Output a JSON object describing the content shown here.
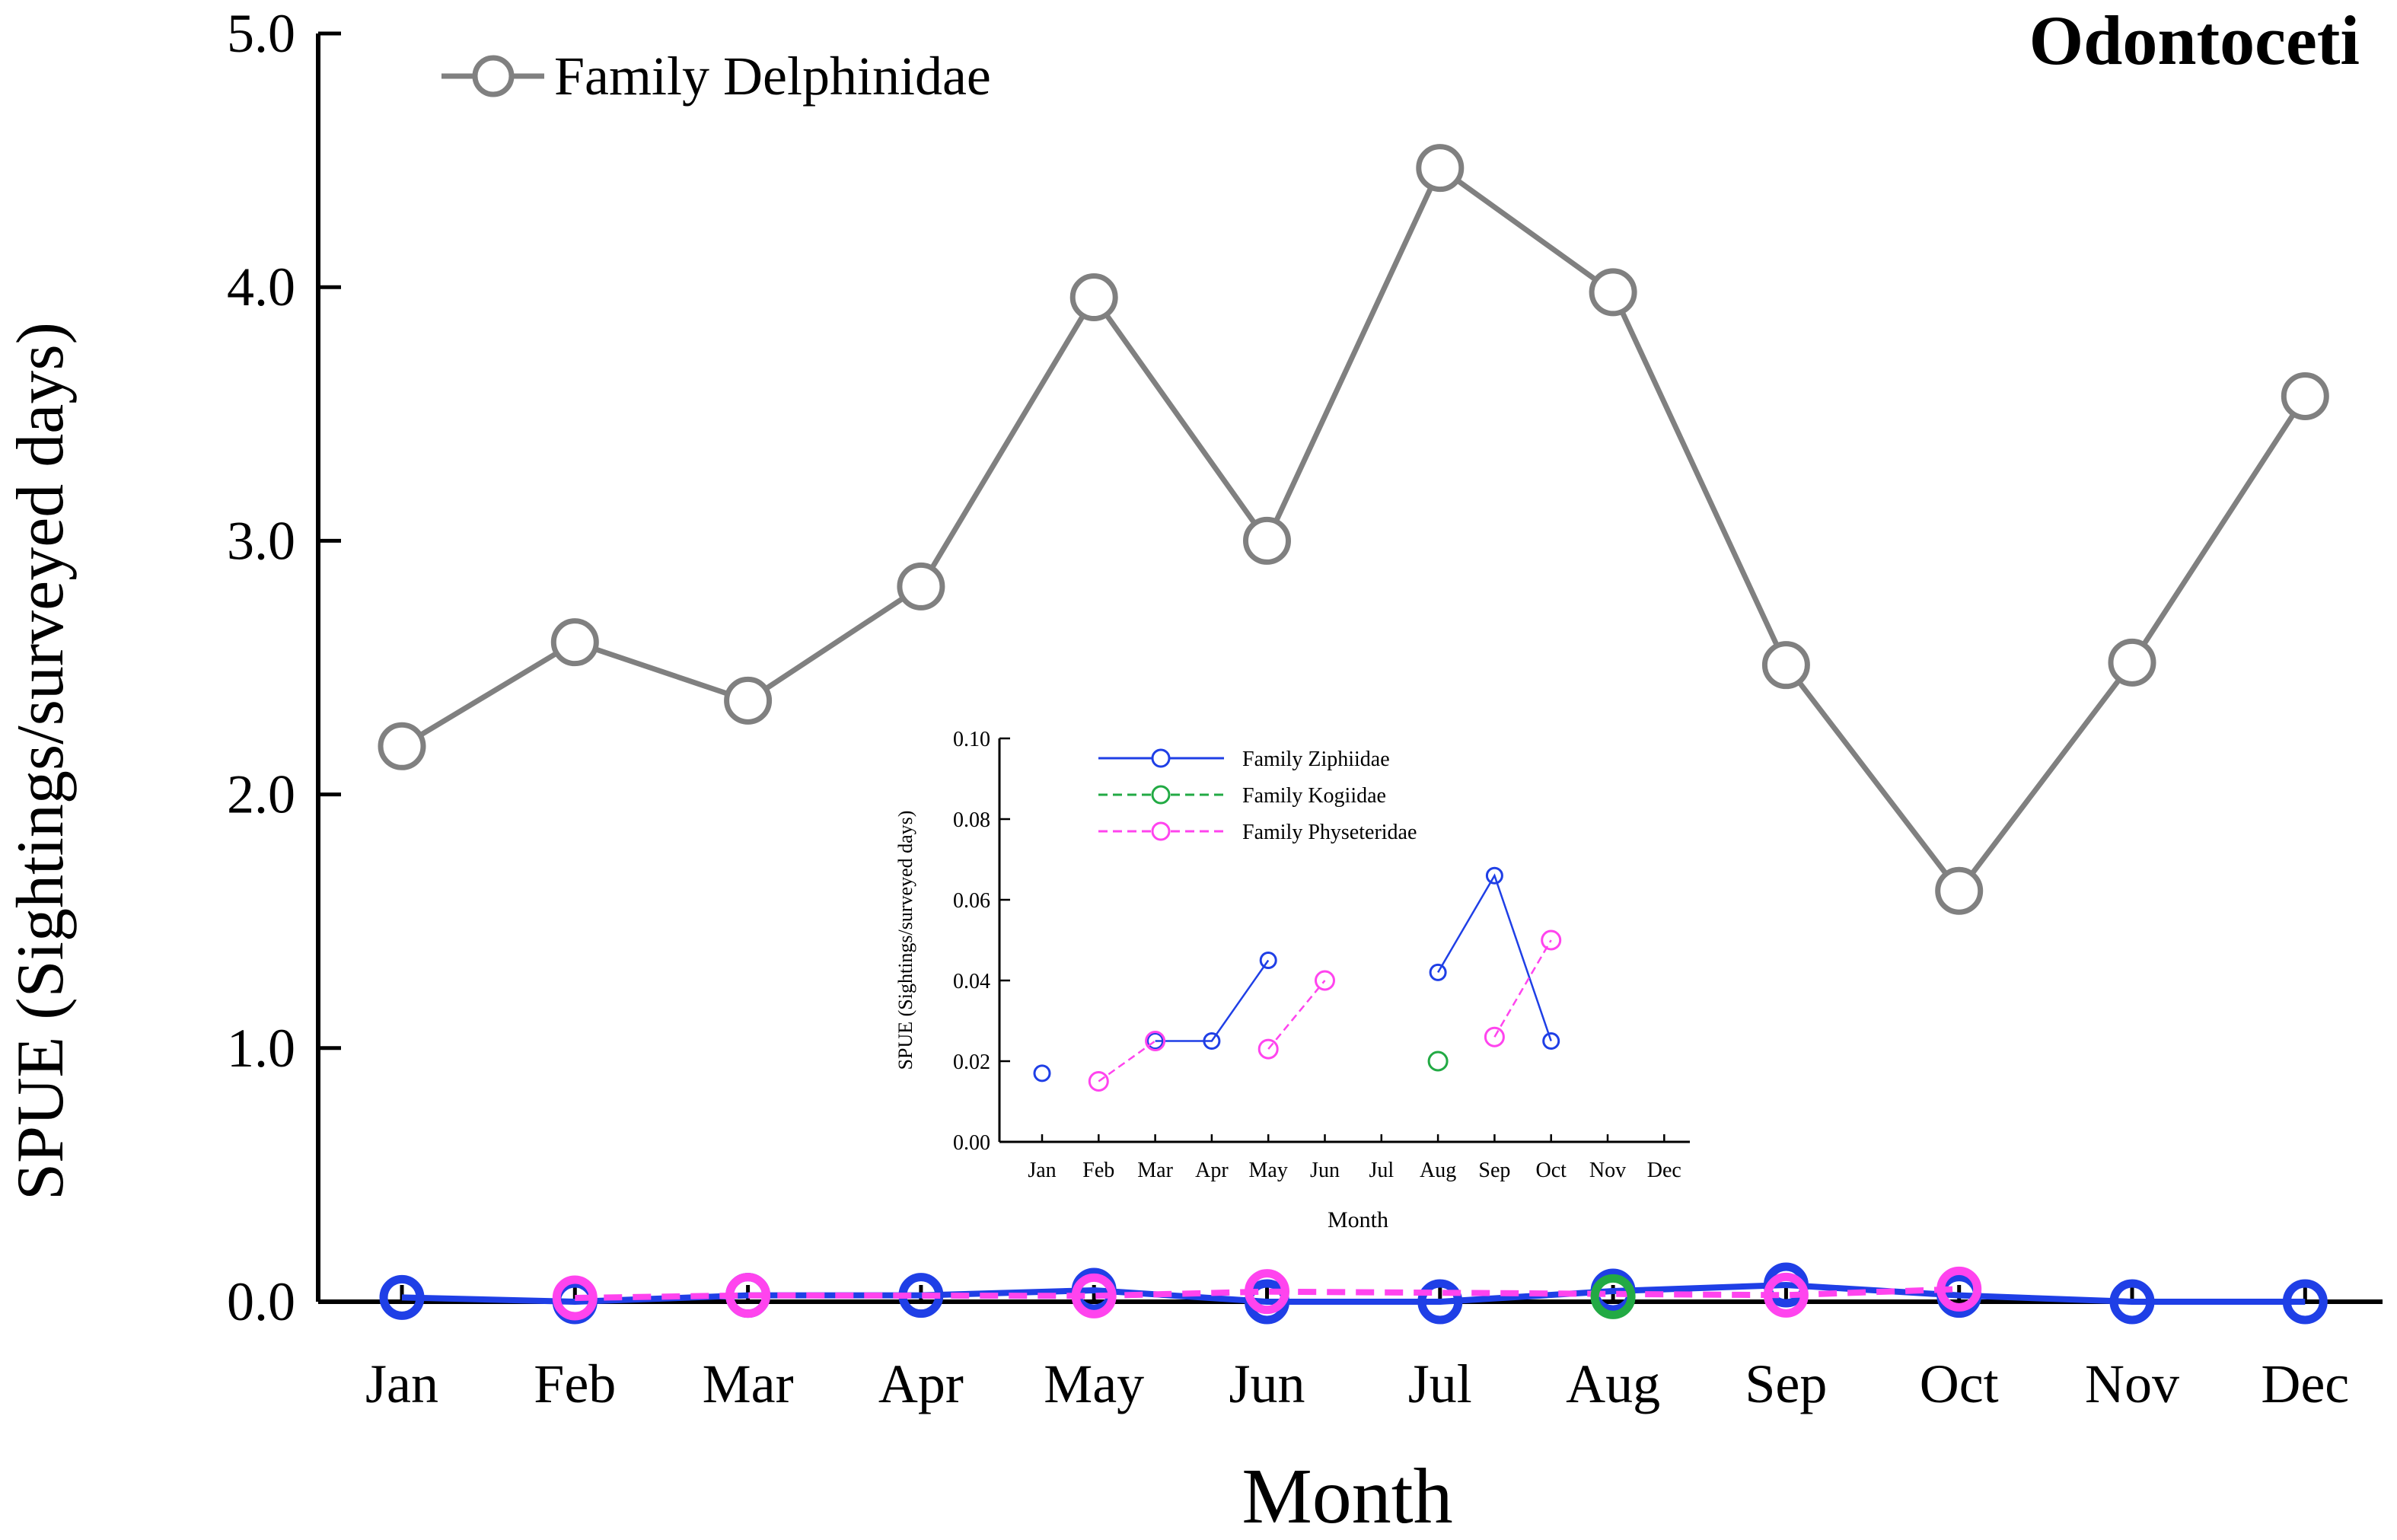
{
  "chart_data": [
    {
      "type": "line",
      "title": "Odontoceti",
      "xlabel": "Month",
      "ylabel": "SPUE (Sightings/surveyed days)",
      "categories": [
        "Jan",
        "Feb",
        "Mar",
        "Apr",
        "May",
        "Jun",
        "Jul",
        "Aug",
        "Sep",
        "Oct",
        "Nov",
        "Dec"
      ],
      "yticks": [
        "0.0",
        "1.0",
        "2.0",
        "3.0",
        "4.0",
        "5.0"
      ],
      "ylim": [
        0,
        5
      ],
      "legend": [
        "Family Delphinidae"
      ],
      "legend_position": "top-left",
      "series": [
        {
          "name": "Family Delphinidae",
          "color": "#808080",
          "style": "solid",
          "values": [
            2.19,
            2.6,
            2.37,
            2.82,
            3.96,
            3.0,
            4.47,
            3.98,
            2.51,
            1.62,
            2.52,
            3.57
          ]
        },
        {
          "color": "#1f3fe6",
          "style": "solid",
          "values": [
            0.017,
            0,
            0.025,
            0.025,
            0.045,
            0,
            0,
            0.042,
            0.066,
            0.025,
            0,
            0
          ]
        },
        {
          "color": "#22aa44",
          "style": "dashed",
          "values": [
            null,
            null,
            null,
            null,
            null,
            null,
            null,
            0.02,
            null,
            null,
            null,
            null
          ]
        },
        {
          "color": "#ff44ee",
          "style": "dashed",
          "values": [
            null,
            0.015,
            0.025,
            null,
            0.023,
            0.04,
            null,
            null,
            0.026,
            0.05,
            null,
            null
          ]
        }
      ]
    },
    {
      "type": "line",
      "xlabel": "Month",
      "ylabel": "SPUE (Sightings/surveyed days)",
      "categories": [
        "Jan",
        "Feb",
        "Mar",
        "Apr",
        "May",
        "Jun",
        "Jul",
        "Aug",
        "Sep",
        "Oct",
        "Nov",
        "Dec"
      ],
      "yticks": [
        "0.00",
        "0.02",
        "0.04",
        "0.06",
        "0.08",
        "0.10"
      ],
      "ylim": [
        0,
        0.1
      ],
      "legend_position": "top-left",
      "series": [
        {
          "name": "Family Ziphiidae",
          "color": "#1f3fe6",
          "style": "solid",
          "segments": [
            [
              [
                1,
                0.017
              ]
            ],
            [
              [
                3,
                0.025
              ],
              [
                4,
                0.025
              ],
              [
                5,
                0.045
              ]
            ],
            [
              [
                8,
                0.042
              ],
              [
                9,
                0.066
              ],
              [
                10,
                0.025
              ]
            ]
          ]
        },
        {
          "name": "Family Kogiidae",
          "color": "#22aa44",
          "style": "dashed",
          "segments": [
            [
              [
                8,
                0.02
              ]
            ]
          ]
        },
        {
          "name": "Family Physeteridae",
          "color": "#ff44ee",
          "style": "dashed",
          "segments": [
            [
              [
                2,
                0.015
              ],
              [
                3,
                0.025
              ]
            ],
            [
              [
                5,
                0.023
              ],
              [
                6,
                0.04
              ]
            ],
            [
              [
                9,
                0.026
              ],
              [
                10,
                0.05
              ]
            ]
          ]
        }
      ]
    }
  ]
}
